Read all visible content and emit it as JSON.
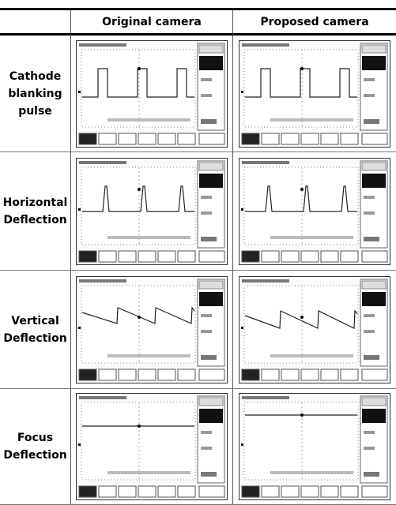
{
  "table": {
    "header": [
      "Original camera",
      "Proposed camera"
    ],
    "rows": [
      {
        "label": "Cathode blanking pulse"
      },
      {
        "label": "Horizontal Deflection"
      },
      {
        "label": "Vertical Deflection"
      },
      {
        "label": "Focus Deflection"
      }
    ]
  }
}
